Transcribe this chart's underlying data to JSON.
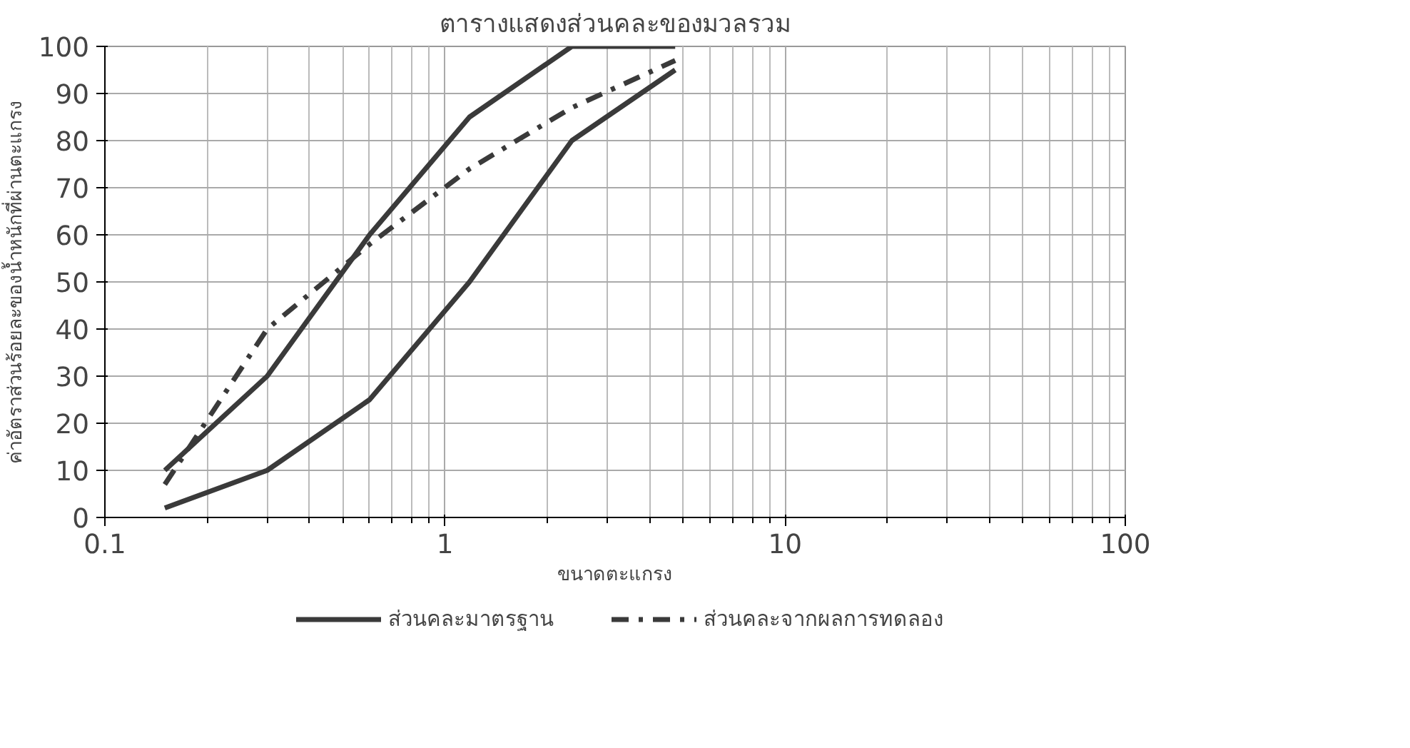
{
  "chart_data": {
    "type": "line",
    "title": "ตารางแสดงส่วนคละของมวลรวม",
    "xlabel": "ขนาดตะแกรง",
    "ylabel": "ค่าอัตราส่วนร้อยละของน้ำหนักที่ผ่านตะแกรง",
    "log": "x",
    "xlim": [
      0.1,
      100
    ],
    "xticks": [
      0.1,
      1,
      10,
      100
    ],
    "ylim": [
      0,
      100
    ],
    "yticks": [
      0,
      10,
      20,
      30,
      40,
      50,
      60,
      70,
      80,
      90,
      100
    ],
    "grid": true,
    "legend": "bottom",
    "marker": "none",
    "series": [
      {
        "name": "ส่วนคละมาตรฐาน",
        "color": "#3a3a3a",
        "line_style": "solid",
        "x": [
          0.15,
          0.3,
          0.6,
          1.18,
          2.36,
          4.75
        ],
        "values": [
          10,
          30,
          60,
          85,
          100,
          100
        ]
      },
      {
        "color": "#3a3a3a",
        "line_style": "solid",
        "x": [
          0.15,
          0.3,
          0.6,
          1.18,
          2.36,
          4.75
        ],
        "values": [
          2,
          10,
          25,
          50,
          80,
          95
        ]
      },
      {
        "name": "ส่วนคละจากผลการทดลอง",
        "color": "#3a3a3a",
        "line_style": "dashed",
        "x": [
          0.15,
          0.3,
          0.6,
          1.18,
          2.36,
          4.75
        ],
        "values": [
          7,
          40,
          58,
          74,
          87,
          97
        ]
      }
    ]
  }
}
